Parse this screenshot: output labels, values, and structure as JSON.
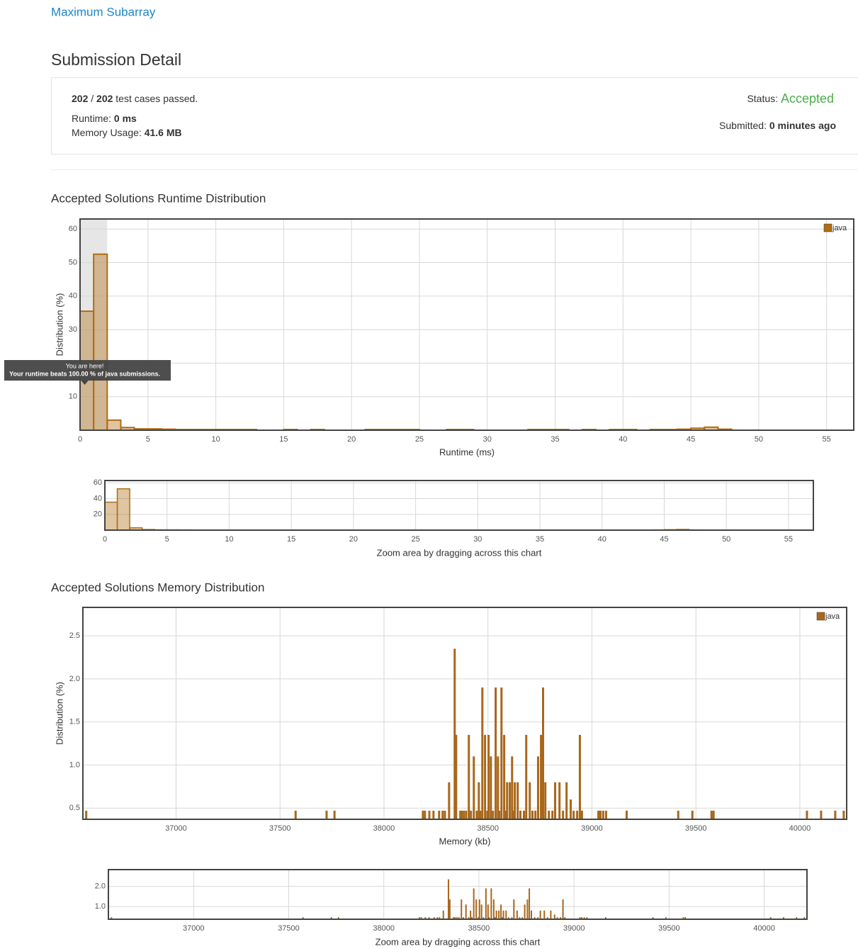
{
  "header": {
    "problem": "Maximum Subarray",
    "title": "Submission Detail"
  },
  "detail": {
    "passed": "202",
    "separator": "/",
    "total": "202",
    "passed_text": "test cases passed.",
    "runtime_label": "Runtime:",
    "runtime": "0 ms",
    "memory_label": "Memory Usage:",
    "memory": "41.6 MB",
    "status_label": "Status:",
    "status": "Accepted",
    "submitted_label": "Submitted:",
    "submitted": "0 minutes ago"
  },
  "chart_data": [
    {
      "type": "histogram",
      "title": "Accepted Solutions Runtime Distribution",
      "xlabel": "Runtime (ms)",
      "ylabel": "Distribution (%)",
      "bins": [
        0,
        1,
        2,
        3,
        4,
        5,
        6,
        7,
        8,
        9,
        10,
        11,
        12,
        13,
        14,
        15,
        16,
        17,
        18,
        19,
        20,
        21,
        22,
        23,
        24,
        25,
        26,
        27,
        28,
        29,
        30,
        31,
        32,
        33,
        34,
        35,
        36,
        37,
        38,
        39,
        40,
        41,
        42,
        43,
        44,
        45,
        46,
        47,
        48
      ],
      "series": [
        {
          "name": "java",
          "color": "#b06d14",
          "values": [
            35.5,
            52.5,
            3,
            0.8,
            0.4,
            0.4,
            0.3,
            0.2,
            0.2,
            0.2,
            0.2,
            0.2,
            0.2,
            0,
            0,
            0.2,
            0,
            0.2,
            0,
            0,
            0,
            0.2,
            0.2,
            0.2,
            0.2,
            0,
            0,
            0.2,
            0.2,
            0,
            0,
            0,
            0,
            0.2,
            0.2,
            0.2,
            0,
            0.2,
            0,
            0.2,
            0.2,
            0,
            0.2,
            0.2,
            0.3,
            0.6,
            0.9,
            0.3
          ]
        }
      ],
      "highlight": [
        0,
        2
      ],
      "annotation": {
        "title": "You are here!",
        "text": "Your runtime beats 100.00 % of java submissions."
      },
      "xlim": [
        0,
        57
      ],
      "ylim": [
        0,
        63
      ],
      "xticks": [
        0,
        5,
        10,
        15,
        20,
        25,
        30,
        35,
        40,
        45,
        50,
        55
      ],
      "yticks": [
        10,
        20,
        30,
        40,
        50,
        60
      ],
      "grid": true,
      "legend": "upper right",
      "zoom": {
        "label": "Zoom area by dragging across this chart",
        "yticks": [
          20,
          40,
          60
        ]
      }
    },
    {
      "type": "bar",
      "title": "Accepted Solutions Memory Distribution",
      "xlabel": "Memory (kb)",
      "ylabel": "Distribution (%)",
      "x": [
        36568,
        37575,
        37724,
        37762,
        38187,
        38197,
        38218,
        38238,
        38265,
        38282,
        38293,
        38313,
        38340,
        38347,
        38367,
        38374,
        38384,
        38395,
        38408,
        38418,
        38432,
        38446,
        38456,
        38463,
        38473,
        38486,
        38497,
        38503,
        38514,
        38524,
        38537,
        38548,
        38554,
        38565,
        38578,
        38585,
        38592,
        38605,
        38616,
        38622,
        38629,
        38643,
        38656,
        38673,
        38684,
        38701,
        38714,
        38728,
        38741,
        38755,
        38765,
        38776,
        38793,
        38810,
        38823,
        38844,
        38861,
        38878,
        38898,
        38912,
        38929,
        38942,
        38952,
        39031,
        39041,
        39054,
        39068,
        39167,
        39415,
        39483,
        39575,
        39585,
        40034,
        40102,
        40170,
        40211
      ],
      "series": [
        {
          "name": "java",
          "color": "#a8671a",
          "values": [
            0.47,
            0.47,
            0.47,
            0.47,
            0.47,
            0.47,
            0.47,
            0.47,
            0.47,
            0.47,
            0.47,
            0.8,
            2.35,
            1.35,
            0.47,
            0.47,
            0.47,
            0.47,
            1.35,
            0.47,
            1.1,
            0.47,
            0.8,
            0.47,
            1.9,
            1.35,
            0.47,
            1.35,
            1.1,
            0.47,
            1.9,
            1.1,
            0.47,
            1.9,
            1.35,
            0.47,
            0.8,
            0.8,
            1.1,
            0.47,
            0.8,
            0.8,
            0.47,
            0.47,
            1.35,
            0.8,
            0.47,
            0.47,
            1.1,
            1.35,
            1.9,
            0.8,
            0.47,
            0.47,
            0.8,
            0.8,
            0.47,
            0.8,
            0.6,
            0.47,
            0.47,
            1.35,
            0.47,
            0.47,
            0.47,
            0.47,
            0.47,
            0.47,
            0.47,
            0.47,
            0.47,
            0.47,
            0.47,
            0.47,
            0.47,
            0.47
          ]
        }
      ],
      "xlim": [
        36552,
        40225
      ],
      "ylim": [
        0.37,
        2.83
      ],
      "xticks": [
        37000,
        37500,
        38000,
        38500,
        39000,
        39500,
        40000
      ],
      "yticks": [
        0.5,
        {
          "value": 1,
          "label": "1.0"
        },
        1.5,
        {
          "value": 2,
          "label": "2.0"
        },
        2.5
      ],
      "grid": true,
      "legend": "upper right",
      "zoom": {
        "label": "Zoom area by dragging across this chart",
        "yticks": [
          {
            "value": 1,
            "label": "1.0"
          },
          {
            "value": 2,
            "label": "2.0"
          }
        ]
      }
    }
  ]
}
